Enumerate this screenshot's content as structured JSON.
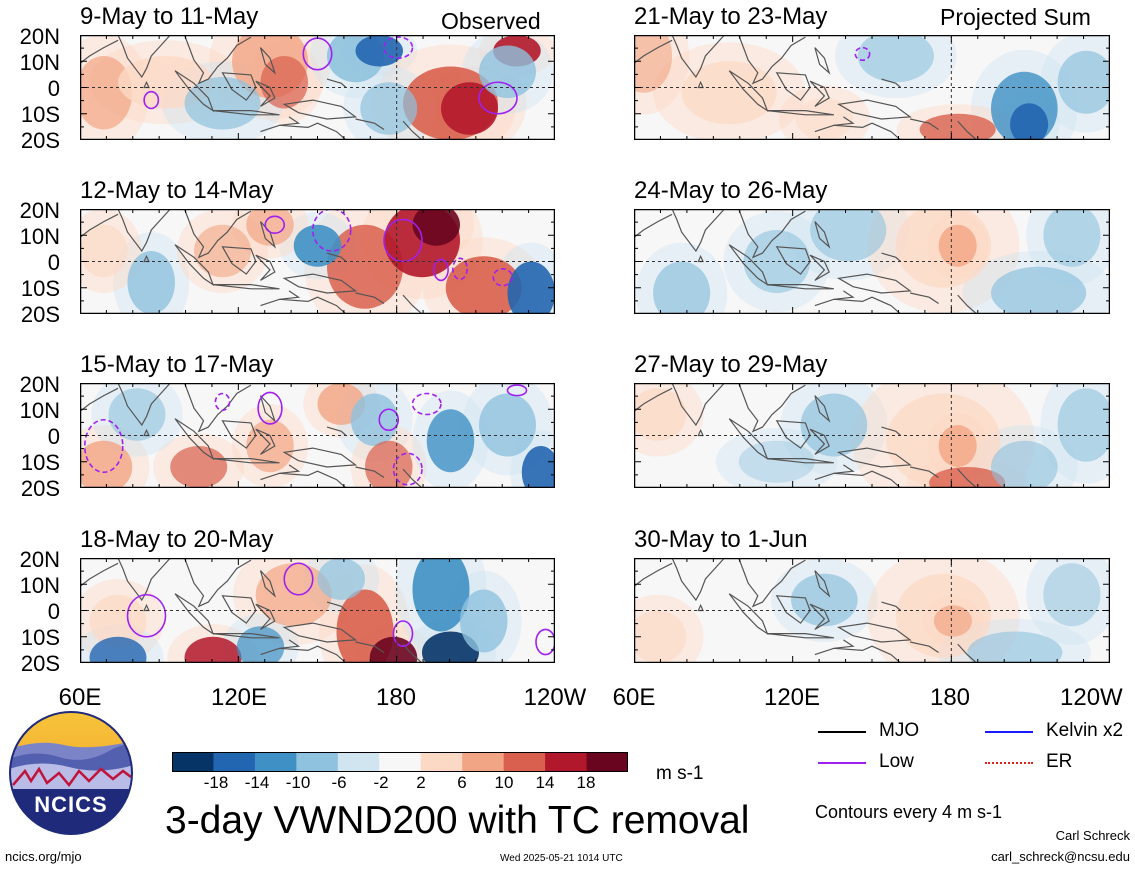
{
  "chart_data": [
    {
      "type": "heatmap",
      "title": "9-May to 11-May",
      "tag": "Observed",
      "period": "observed"
    },
    {
      "type": "heatmap",
      "title": "12-May to 14-May",
      "tag": "",
      "period": "observed"
    },
    {
      "type": "heatmap",
      "title": "15-May to 17-May",
      "tag": "",
      "period": "observed"
    },
    {
      "type": "heatmap",
      "title": "18-May to 20-May",
      "tag": "",
      "period": "observed"
    },
    {
      "type": "heatmap",
      "title": "21-May to 23-May",
      "tag": "Projected Sum",
      "period": "projected"
    },
    {
      "type": "heatmap",
      "title": "24-May to 26-May",
      "tag": "",
      "period": "projected"
    },
    {
      "type": "heatmap",
      "title": "27-May to 29-May",
      "tag": "",
      "period": "projected"
    },
    {
      "type": "heatmap",
      "title": "30-May to 1-Jun",
      "tag": "",
      "period": "projected"
    }
  ],
  "axes": {
    "lat_labels": [
      "20N",
      "10N",
      "0",
      "10S",
      "20S"
    ],
    "lon_labels": [
      "60E",
      "120E",
      "180",
      "120W"
    ],
    "ylim": [
      -20,
      20
    ],
    "xlim": [
      60,
      240
    ]
  },
  "colorbar": {
    "labels": [
      "-18",
      "-14",
      "-10",
      "-6",
      "-2",
      "2",
      "6",
      "10",
      "14",
      "18"
    ],
    "colors": [
      "#073467",
      "#2265b0",
      "#3f90c4",
      "#8fc2de",
      "#d1e5f1",
      "#f7f7f7",
      "#fcd9c5",
      "#f2a584",
      "#d9604e",
      "#b2182b",
      "#6a0520"
    ],
    "units": "m s-1"
  },
  "legend": [
    {
      "label": "MJO",
      "color": "#000000",
      "style": "solid"
    },
    {
      "label": "Kelvin x2",
      "color": "#1a1aff",
      "style": "solid"
    },
    {
      "label": "Low",
      "color": "#a020f0",
      "style": "solid"
    },
    {
      "label": "ER",
      "color": "#e0201a",
      "style": "dotted"
    }
  ],
  "contour_note": "Contours every 4 m s-1",
  "main_title": "3-day VWND200 with TC removal",
  "logo_text": "NCICS",
  "footer": {
    "left": "ncics.org/mjo",
    "center": "Wed 2025-05-21 1014 UTC",
    "author": "Carl Schreck",
    "email": "carl_schreck@ncsu.edu"
  }
}
